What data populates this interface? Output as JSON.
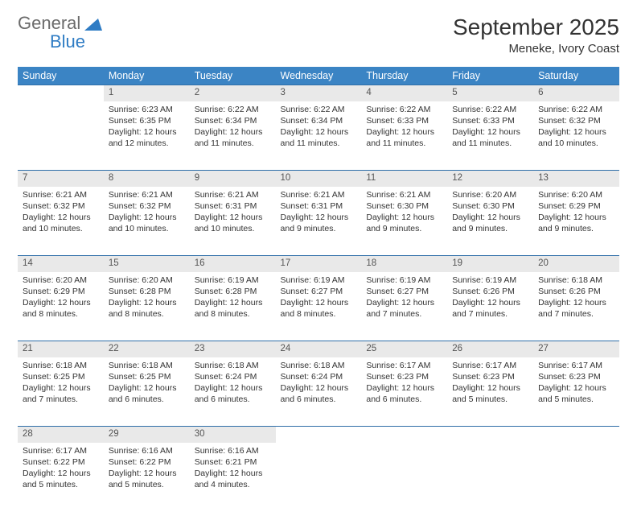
{
  "logo": {
    "word1": "General",
    "word2": "Blue"
  },
  "title": "September 2025",
  "location": "Meneke, Ivory Coast",
  "colors": {
    "header_bg": "#3b84c4",
    "header_text": "#ffffff",
    "daynum_bg": "#e9e9e9",
    "rule": "#2f6ea8",
    "body_text": "#333333",
    "logo_gray": "#6b6b6b",
    "logo_blue": "#2f7cc4",
    "page_bg": "#ffffff"
  },
  "typography": {
    "title_fontsize": 28,
    "location_fontsize": 15,
    "dayhead_fontsize": 12.5,
    "daynum_fontsize": 11.5,
    "cell_fontsize": 10.5
  },
  "day_headers": [
    "Sunday",
    "Monday",
    "Tuesday",
    "Wednesday",
    "Thursday",
    "Friday",
    "Saturday"
  ],
  "layout": {
    "columns": 7,
    "rows": 5,
    "first_weekday_offset": 1
  },
  "weeks": [
    [
      null,
      {
        "n": "1",
        "sunrise": "Sunrise: 6:23 AM",
        "sunset": "Sunset: 6:35 PM",
        "dl1": "Daylight: 12 hours",
        "dl2": "and 12 minutes."
      },
      {
        "n": "2",
        "sunrise": "Sunrise: 6:22 AM",
        "sunset": "Sunset: 6:34 PM",
        "dl1": "Daylight: 12 hours",
        "dl2": "and 11 minutes."
      },
      {
        "n": "3",
        "sunrise": "Sunrise: 6:22 AM",
        "sunset": "Sunset: 6:34 PM",
        "dl1": "Daylight: 12 hours",
        "dl2": "and 11 minutes."
      },
      {
        "n": "4",
        "sunrise": "Sunrise: 6:22 AM",
        "sunset": "Sunset: 6:33 PM",
        "dl1": "Daylight: 12 hours",
        "dl2": "and 11 minutes."
      },
      {
        "n": "5",
        "sunrise": "Sunrise: 6:22 AM",
        "sunset": "Sunset: 6:33 PM",
        "dl1": "Daylight: 12 hours",
        "dl2": "and 11 minutes."
      },
      {
        "n": "6",
        "sunrise": "Sunrise: 6:22 AM",
        "sunset": "Sunset: 6:32 PM",
        "dl1": "Daylight: 12 hours",
        "dl2": "and 10 minutes."
      }
    ],
    [
      {
        "n": "7",
        "sunrise": "Sunrise: 6:21 AM",
        "sunset": "Sunset: 6:32 PM",
        "dl1": "Daylight: 12 hours",
        "dl2": "and 10 minutes."
      },
      {
        "n": "8",
        "sunrise": "Sunrise: 6:21 AM",
        "sunset": "Sunset: 6:32 PM",
        "dl1": "Daylight: 12 hours",
        "dl2": "and 10 minutes."
      },
      {
        "n": "9",
        "sunrise": "Sunrise: 6:21 AM",
        "sunset": "Sunset: 6:31 PM",
        "dl1": "Daylight: 12 hours",
        "dl2": "and 10 minutes."
      },
      {
        "n": "10",
        "sunrise": "Sunrise: 6:21 AM",
        "sunset": "Sunset: 6:31 PM",
        "dl1": "Daylight: 12 hours",
        "dl2": "and 9 minutes."
      },
      {
        "n": "11",
        "sunrise": "Sunrise: 6:21 AM",
        "sunset": "Sunset: 6:30 PM",
        "dl1": "Daylight: 12 hours",
        "dl2": "and 9 minutes."
      },
      {
        "n": "12",
        "sunrise": "Sunrise: 6:20 AM",
        "sunset": "Sunset: 6:30 PM",
        "dl1": "Daylight: 12 hours",
        "dl2": "and 9 minutes."
      },
      {
        "n": "13",
        "sunrise": "Sunrise: 6:20 AM",
        "sunset": "Sunset: 6:29 PM",
        "dl1": "Daylight: 12 hours",
        "dl2": "and 9 minutes."
      }
    ],
    [
      {
        "n": "14",
        "sunrise": "Sunrise: 6:20 AM",
        "sunset": "Sunset: 6:29 PM",
        "dl1": "Daylight: 12 hours",
        "dl2": "and 8 minutes."
      },
      {
        "n": "15",
        "sunrise": "Sunrise: 6:20 AM",
        "sunset": "Sunset: 6:28 PM",
        "dl1": "Daylight: 12 hours",
        "dl2": "and 8 minutes."
      },
      {
        "n": "16",
        "sunrise": "Sunrise: 6:19 AM",
        "sunset": "Sunset: 6:28 PM",
        "dl1": "Daylight: 12 hours",
        "dl2": "and 8 minutes."
      },
      {
        "n": "17",
        "sunrise": "Sunrise: 6:19 AM",
        "sunset": "Sunset: 6:27 PM",
        "dl1": "Daylight: 12 hours",
        "dl2": "and 8 minutes."
      },
      {
        "n": "18",
        "sunrise": "Sunrise: 6:19 AM",
        "sunset": "Sunset: 6:27 PM",
        "dl1": "Daylight: 12 hours",
        "dl2": "and 7 minutes."
      },
      {
        "n": "19",
        "sunrise": "Sunrise: 6:19 AM",
        "sunset": "Sunset: 6:26 PM",
        "dl1": "Daylight: 12 hours",
        "dl2": "and 7 minutes."
      },
      {
        "n": "20",
        "sunrise": "Sunrise: 6:18 AM",
        "sunset": "Sunset: 6:26 PM",
        "dl1": "Daylight: 12 hours",
        "dl2": "and 7 minutes."
      }
    ],
    [
      {
        "n": "21",
        "sunrise": "Sunrise: 6:18 AM",
        "sunset": "Sunset: 6:25 PM",
        "dl1": "Daylight: 12 hours",
        "dl2": "and 7 minutes."
      },
      {
        "n": "22",
        "sunrise": "Sunrise: 6:18 AM",
        "sunset": "Sunset: 6:25 PM",
        "dl1": "Daylight: 12 hours",
        "dl2": "and 6 minutes."
      },
      {
        "n": "23",
        "sunrise": "Sunrise: 6:18 AM",
        "sunset": "Sunset: 6:24 PM",
        "dl1": "Daylight: 12 hours",
        "dl2": "and 6 minutes."
      },
      {
        "n": "24",
        "sunrise": "Sunrise: 6:18 AM",
        "sunset": "Sunset: 6:24 PM",
        "dl1": "Daylight: 12 hours",
        "dl2": "and 6 minutes."
      },
      {
        "n": "25",
        "sunrise": "Sunrise: 6:17 AM",
        "sunset": "Sunset: 6:23 PM",
        "dl1": "Daylight: 12 hours",
        "dl2": "and 6 minutes."
      },
      {
        "n": "26",
        "sunrise": "Sunrise: 6:17 AM",
        "sunset": "Sunset: 6:23 PM",
        "dl1": "Daylight: 12 hours",
        "dl2": "and 5 minutes."
      },
      {
        "n": "27",
        "sunrise": "Sunrise: 6:17 AM",
        "sunset": "Sunset: 6:23 PM",
        "dl1": "Daylight: 12 hours",
        "dl2": "and 5 minutes."
      }
    ],
    [
      {
        "n": "28",
        "sunrise": "Sunrise: 6:17 AM",
        "sunset": "Sunset: 6:22 PM",
        "dl1": "Daylight: 12 hours",
        "dl2": "and 5 minutes."
      },
      {
        "n": "29",
        "sunrise": "Sunrise: 6:16 AM",
        "sunset": "Sunset: 6:22 PM",
        "dl1": "Daylight: 12 hours",
        "dl2": "and 5 minutes."
      },
      {
        "n": "30",
        "sunrise": "Sunrise: 6:16 AM",
        "sunset": "Sunset: 6:21 PM",
        "dl1": "Daylight: 12 hours",
        "dl2": "and 4 minutes."
      },
      null,
      null,
      null,
      null
    ]
  ]
}
